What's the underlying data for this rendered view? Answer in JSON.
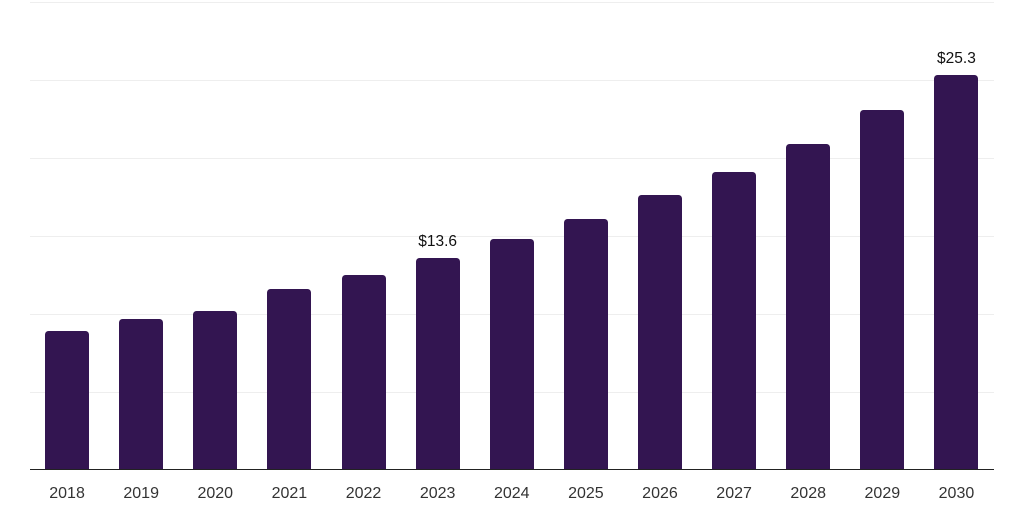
{
  "chart_data": {
    "type": "bar",
    "title": "",
    "xlabel": "",
    "ylabel": "",
    "categories": [
      "2018",
      "2019",
      "2020",
      "2021",
      "2022",
      "2023",
      "2024",
      "2025",
      "2026",
      "2027",
      "2028",
      "2029",
      "2030"
    ],
    "values": [
      8.9,
      9.7,
      10.2,
      11.6,
      12.5,
      13.6,
      14.8,
      16.1,
      17.6,
      19.1,
      20.9,
      23.1,
      25.3
    ],
    "annotations": [
      {
        "category": "2023",
        "text": "$13.6"
      },
      {
        "category": "2030",
        "text": "$25.3"
      }
    ],
    "ylim": [
      0,
      30
    ],
    "gridline_step": 5,
    "grid": true,
    "legend": false,
    "y_tick_labels_visible": false,
    "colors": {
      "bar": "#331551",
      "gridline": "#eeeeee",
      "axis_line": "#222222",
      "x_tick_label": "#333333",
      "annotation": "#111111",
      "background": "#ffffff"
    }
  }
}
